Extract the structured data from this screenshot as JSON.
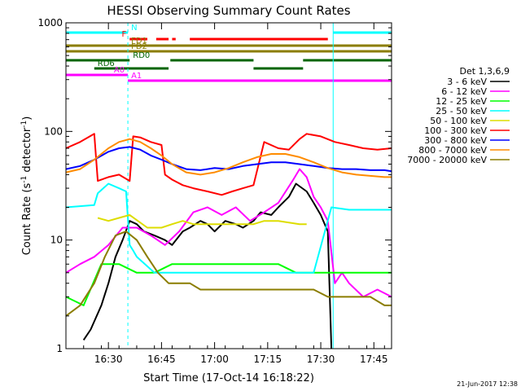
{
  "chart_data": {
    "type": "line",
    "title": "HESSI Observing Summary Count Rates",
    "xlabel": "Start Time (17-Oct-14 16:18:22)",
    "ylabel_prefix": "Count Rate (s",
    "ylabel_sup1": "-1",
    "ylabel_mid": " detector",
    "ylabel_sup2": "-1",
    "ylabel_suffix": ")",
    "yscale": "log",
    "ylim": [
      1,
      1000
    ],
    "xlim_minutes": [
      0,
      92
    ],
    "x_unit": "minutes after 16:18:22",
    "x_ticks": [
      {
        "m": 12,
        "label": "16:30"
      },
      {
        "m": 27,
        "label": "16:45"
      },
      {
        "m": 42,
        "label": "17:00"
      },
      {
        "m": 57,
        "label": "17:15"
      },
      {
        "m": 72,
        "label": "17:30"
      },
      {
        "m": 87,
        "label": "17:45"
      }
    ],
    "y_ticks": [
      {
        "v": 1,
        "label": "1"
      },
      {
        "v": 10,
        "label": "10"
      },
      {
        "v": 100,
        "label": "100"
      },
      {
        "v": 1000,
        "label": "1000"
      }
    ],
    "legend_title": "Det 1,3,6,9",
    "legend_placement": "right",
    "series": [
      {
        "name": "3 - 6 keV",
        "color": "#000000",
        "x": [
          5,
          7,
          10,
          12,
          14,
          16,
          18,
          20,
          22,
          25,
          28,
          30,
          33,
          35,
          38,
          40,
          42,
          45,
          48,
          50,
          53,
          55,
          58,
          60,
          63,
          65,
          68,
          70,
          72,
          74,
          75
        ],
        "y": [
          1.2,
          1.5,
          2.5,
          4,
          7,
          10,
          15,
          14,
          12,
          11,
          10,
          9,
          12,
          13,
          15,
          14,
          12,
          15,
          14,
          13,
          15,
          18,
          17,
          20,
          25,
          33,
          28,
          22,
          17,
          12,
          1
        ]
      },
      {
        "name": "6 - 12 keV",
        "color": "#ff00ff",
        "x": [
          0,
          4,
          8,
          12,
          16,
          20,
          24,
          28,
          32,
          36,
          40,
          44,
          48,
          52,
          56,
          60,
          64,
          66,
          68,
          70,
          72,
          74,
          76,
          78,
          80,
          84,
          88,
          92
        ],
        "y": [
          5,
          6,
          7,
          9,
          13,
          13,
          11,
          9,
          12,
          18,
          20,
          17,
          20,
          15,
          18,
          22,
          35,
          45,
          38,
          25,
          20,
          15,
          4,
          5,
          4,
          3,
          3.5,
          3
        ]
      },
      {
        "name": "12 - 25 keV",
        "color": "#00ff00",
        "x": [
          0,
          5,
          10,
          15,
          20,
          25,
          30,
          35,
          40,
          45,
          50,
          55,
          60,
          65,
          70,
          75,
          80,
          85,
          90,
          92
        ],
        "y": [
          3,
          2.5,
          6,
          6,
          5,
          5,
          6,
          6,
          6,
          6,
          6,
          6,
          6,
          5,
          5,
          5,
          5,
          5,
          5,
          5
        ]
      },
      {
        "name": "25 - 50 keV",
        "color": "#00ffff",
        "x": [
          0,
          8,
          9,
          12,
          15,
          17,
          18,
          19,
          20,
          25,
          30,
          35,
          40,
          45,
          50,
          55,
          60,
          65,
          70,
          75,
          80,
          85,
          90,
          92
        ],
        "y": [
          20,
          21,
          27,
          33,
          30,
          28,
          9,
          8,
          7,
          5,
          5,
          5,
          5,
          5,
          5,
          5,
          5,
          5,
          5,
          20,
          19,
          19,
          19,
          19
        ]
      },
      {
        "name": "50 - 100 keV",
        "color": "#dddd00",
        "x": [
          9,
          12,
          15,
          18,
          23,
          27,
          30,
          33,
          36,
          42,
          47,
          51,
          53,
          56,
          60,
          66,
          68
        ],
        "y": [
          16,
          15,
          16,
          17,
          13,
          13,
          14,
          15,
          14,
          14,
          14,
          14,
          14,
          15,
          15,
          14,
          14
        ]
      },
      {
        "name": "100 - 300 keV",
        "color": "#ff0000",
        "x": [
          0,
          4,
          8,
          9,
          12,
          15,
          18,
          19,
          21,
          24,
          27,
          28,
          30,
          33,
          36,
          40,
          44,
          47,
          50,
          53,
          56,
          60,
          63,
          66,
          68,
          72,
          76,
          80,
          84,
          88,
          92
        ],
        "y": [
          70,
          80,
          95,
          35,
          38,
          40,
          35,
          90,
          88,
          80,
          75,
          40,
          36,
          32,
          30,
          28,
          26,
          28,
          30,
          32,
          80,
          70,
          68,
          85,
          95,
          90,
          80,
          75,
          70,
          68,
          70
        ]
      },
      {
        "name": "300 - 800 keV",
        "color": "#0000ff",
        "x": [
          0,
          4,
          8,
          12,
          15,
          18,
          21,
          24,
          27,
          30,
          34,
          38,
          42,
          46,
          50,
          54,
          58,
          62,
          66,
          70,
          74,
          78,
          82,
          86,
          90,
          92
        ],
        "y": [
          45,
          48,
          55,
          65,
          70,
          72,
          68,
          60,
          55,
          50,
          45,
          44,
          46,
          45,
          48,
          50,
          52,
          52,
          50,
          48,
          46,
          45,
          45,
          44,
          44,
          43
        ]
      },
      {
        "name": "800 - 7000 keV",
        "color": "#ff8c00",
        "x": [
          0,
          4,
          8,
          12,
          15,
          18,
          21,
          24,
          27,
          30,
          34,
          38,
          42,
          46,
          50,
          54,
          58,
          62,
          66,
          70,
          74,
          78,
          82,
          86,
          90,
          92
        ],
        "y": [
          42,
          45,
          55,
          70,
          80,
          85,
          80,
          70,
          60,
          50,
          42,
          40,
          42,
          46,
          52,
          58,
          62,
          62,
          58,
          52,
          46,
          42,
          40,
          39,
          38,
          38
        ]
      },
      {
        "name": "7000 - 20000 keV",
        "color": "#8b7d00",
        "x": [
          0,
          4,
          8,
          11,
          14,
          17,
          20,
          23,
          26,
          29,
          32,
          35,
          38,
          42,
          46,
          50,
          54,
          58,
          62,
          66,
          70,
          74,
          78,
          82,
          86,
          90,
          92
        ],
        "y": [
          2,
          2.5,
          4,
          7,
          11,
          12,
          10,
          7,
          5,
          4,
          4,
          4,
          3.5,
          3.5,
          3.5,
          3.5,
          3.5,
          3.5,
          3.5,
          3.5,
          3.5,
          3,
          3,
          3,
          3,
          2.5,
          2.5
        ]
      }
    ],
    "vertical_lines": [
      {
        "m": 0,
        "color": "#00ffff",
        "style": "solid"
      },
      {
        "m": 17.5,
        "color": "#00ffff",
        "style": "dashed"
      },
      {
        "m": 75.5,
        "color": "#00ffff",
        "style": "solid"
      },
      {
        "m": 92,
        "color": "#00ffff",
        "style": "dashed"
      }
    ],
    "state_bars": [
      {
        "label": "N",
        "color": "#00ffff",
        "segments": [
          [
            0,
            17.5
          ],
          [
            75.5,
            92
          ]
        ]
      },
      {
        "label": "F",
        "color": "#ff0000",
        "segments": [
          [
            18,
            23
          ],
          [
            25.5,
            29
          ],
          [
            30,
            31
          ],
          [
            35,
            74
          ]
        ]
      },
      {
        "label": "FD1",
        "color": "#8b7d00",
        "segments": [
          [
            0,
            92
          ]
        ]
      },
      {
        "label": "FD2",
        "color": "#8b7d00",
        "segments": [
          [
            0,
            92
          ]
        ]
      },
      {
        "label": "RD0",
        "color": "#006400",
        "segments": [
          [
            0,
            18
          ],
          [
            29.5,
            53
          ],
          [
            67,
            92
          ]
        ]
      },
      {
        "label": "RD6",
        "color": "#006400",
        "segments": [
          [
            8,
            29
          ],
          [
            53,
            67
          ]
        ]
      },
      {
        "label": "A0",
        "color": "#ff00ff",
        "segments": [
          [
            0,
            17.5
          ]
        ]
      },
      {
        "label": "A1",
        "color": "#ff00ff",
        "segments": [
          [
            17.5,
            92
          ]
        ]
      }
    ]
  },
  "footer_date": "21-Jun-2017 12:38"
}
